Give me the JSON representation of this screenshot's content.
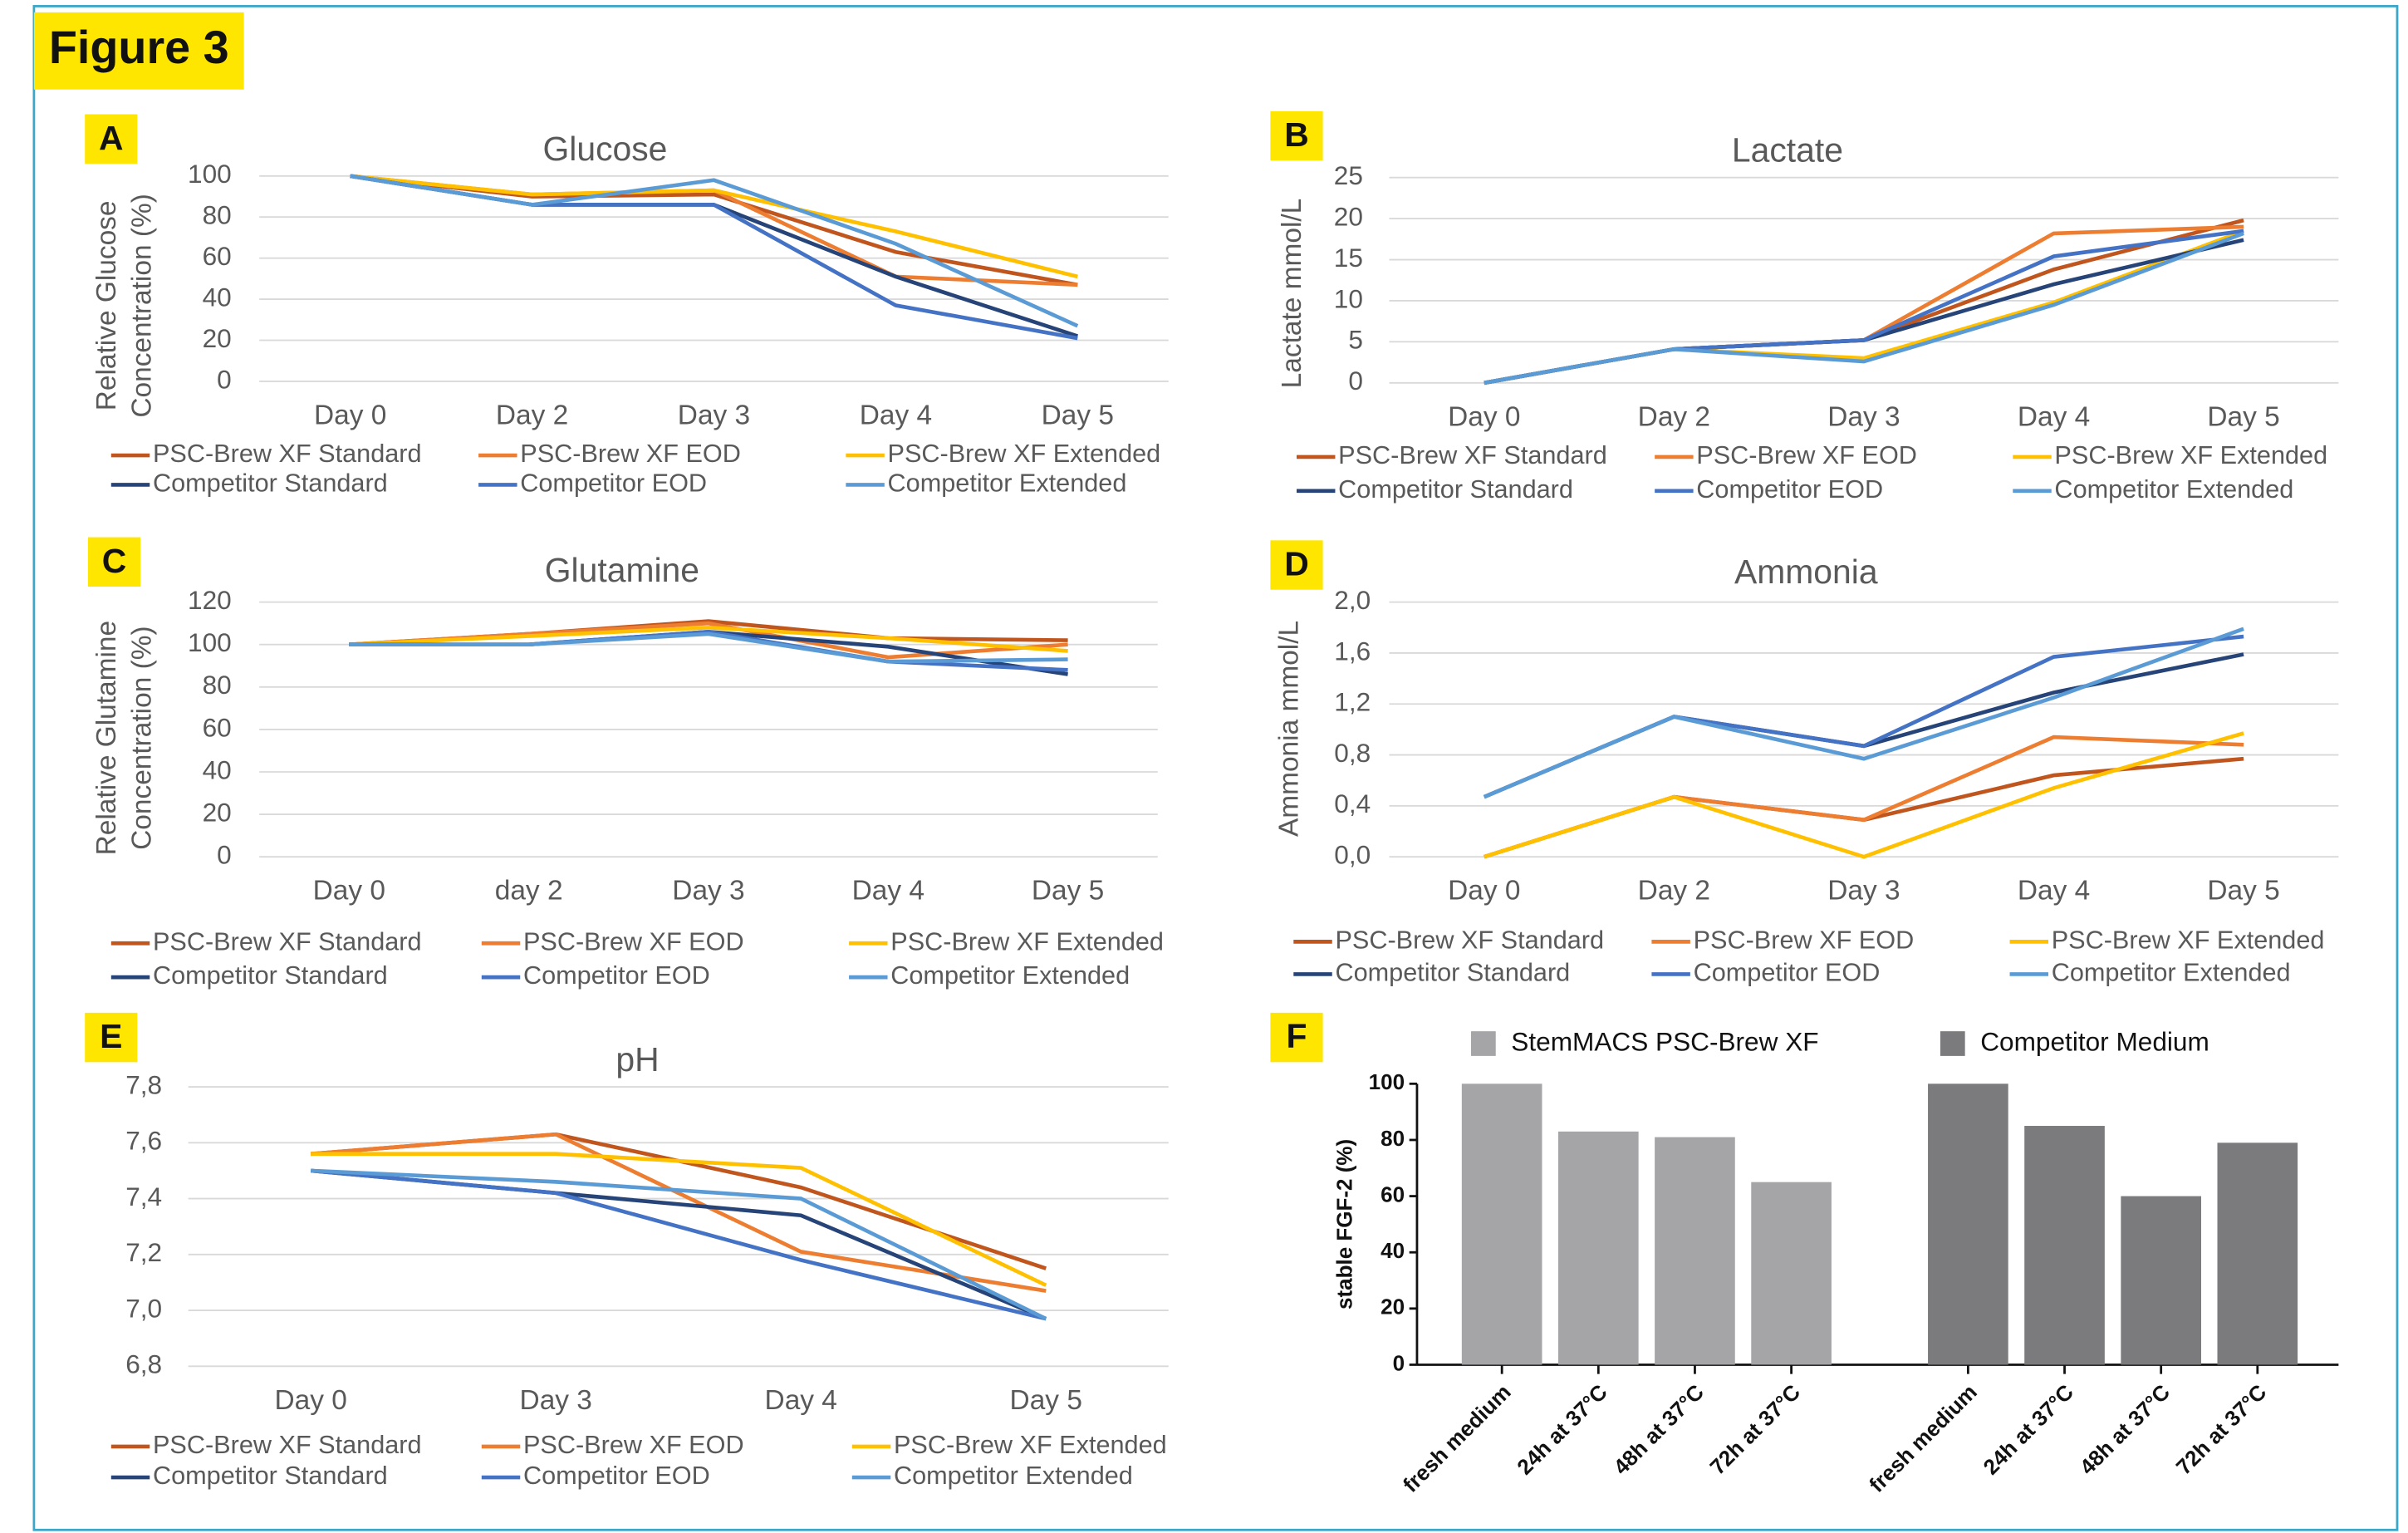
{
  "figure_label": "Figure 3",
  "chart_data": [
    {
      "type": "line",
      "panel": "A",
      "title": "Glucose",
      "ylabel": [
        "Relative Glucose",
        "Concentration (%)"
      ],
      "categories": [
        "Day 0",
        "Day 2",
        "Day 3",
        "Day 4",
        "Day 5"
      ],
      "ylim": [
        0,
        100
      ],
      "yticks": [
        0,
        20,
        40,
        60,
        80,
        100
      ],
      "grid": true,
      "series": [
        {
          "name": "PSC-Brew XF Standard",
          "color": "#c0561d",
          "values": [
            100,
            90,
            91,
            63,
            47
          ]
        },
        {
          "name": "PSC-Brew XF EOD",
          "color": "#ed7d31",
          "values": [
            100,
            91,
            93,
            51,
            47
          ]
        },
        {
          "name": "PSC-Brew XF Extended",
          "color": "#ffc000",
          "values": [
            100,
            91,
            93,
            73,
            51
          ]
        },
        {
          "name": "Competitor Standard",
          "color": "#264478",
          "values": [
            100,
            86,
            86,
            51,
            22
          ]
        },
        {
          "name": "Competitor EOD",
          "color": "#4472c4",
          "values": [
            100,
            86,
            86,
            37,
            21
          ]
        },
        {
          "name": "Competitor Extended",
          "color": "#5b9bd5",
          "values": [
            100,
            86,
            98,
            67,
            27
          ]
        }
      ]
    },
    {
      "type": "line",
      "panel": "B",
      "title": "Lactate",
      "ylabel": [
        "Lactate mmol/L"
      ],
      "categories": [
        "Day 0",
        "Day 2",
        "Day 3",
        "Day 4",
        "Day 5"
      ],
      "ylim": [
        0,
        25
      ],
      "yticks": [
        0,
        5,
        10,
        15,
        20,
        25
      ],
      "grid": true,
      "series": [
        {
          "name": "PSC-Brew XF Standard",
          "color": "#c0561d",
          "values": [
            0,
            4.1,
            5.2,
            13.8,
            19.8
          ]
        },
        {
          "name": "PSC-Brew XF EOD",
          "color": "#ed7d31",
          "values": [
            0,
            4.1,
            5.2,
            18.2,
            19.0
          ]
        },
        {
          "name": "PSC-Brew XF Extended",
          "color": "#ffc000",
          "values": [
            0,
            4.1,
            3.0,
            9.8,
            18.5
          ]
        },
        {
          "name": "Competitor Standard",
          "color": "#264478",
          "values": [
            0,
            4.1,
            5.2,
            12.0,
            17.4
          ]
        },
        {
          "name": "Competitor EOD",
          "color": "#4472c4",
          "values": [
            0,
            4.1,
            5.2,
            15.4,
            18.5
          ]
        },
        {
          "name": "Competitor Extended",
          "color": "#5b9bd5",
          "values": [
            0,
            4.1,
            2.6,
            9.5,
            18.2
          ]
        }
      ]
    },
    {
      "type": "line",
      "panel": "C",
      "title": "Glutamine",
      "ylabel": [
        "Relative Glutamine",
        "Concentration (%)"
      ],
      "categories": [
        "Day 0",
        "day 2",
        "Day 3",
        "Day 4",
        "Day 5"
      ],
      "ylim": [
        0,
        120
      ],
      "yticks": [
        0,
        20,
        40,
        60,
        80,
        100,
        120
      ],
      "grid": true,
      "series": [
        {
          "name": "PSC-Brew XF Standard",
          "color": "#c0561d",
          "values": [
            100,
            105,
            111,
            103,
            102
          ]
        },
        {
          "name": "PSC-Brew XF EOD",
          "color": "#ed7d31",
          "values": [
            100,
            105,
            110,
            94,
            100
          ]
        },
        {
          "name": "PSC-Brew XF Extended",
          "color": "#ffc000",
          "values": [
            100,
            104,
            108,
            103,
            97
          ]
        },
        {
          "name": "Competitor Standard",
          "color": "#264478",
          "values": [
            100,
            100,
            106,
            99,
            86
          ]
        },
        {
          "name": "Competitor EOD",
          "color": "#4472c4",
          "values": [
            100,
            100,
            106,
            92,
            88
          ]
        },
        {
          "name": "Competitor Extended",
          "color": "#5b9bd5",
          "values": [
            100,
            100,
            105,
            92,
            93
          ]
        }
      ]
    },
    {
      "type": "line",
      "panel": "D",
      "title": "Ammonia",
      "ylabel": [
        "Ammonia mmol/L"
      ],
      "categories": [
        "Day 0",
        "Day 2",
        "Day 3",
        "Day 4",
        "Day 5"
      ],
      "ylim": [
        0,
        2
      ],
      "yticks": [
        {
          "value": 0,
          "label": "0,0"
        },
        {
          "value": 0.4,
          "label": "0,4"
        },
        {
          "value": 0.8,
          "label": "0,8"
        },
        {
          "value": 1.2,
          "label": "1,2"
        },
        {
          "value": 1.6,
          "label": "1,6"
        },
        {
          "value": 2,
          "label": "2,0"
        }
      ],
      "grid": true,
      "series": [
        {
          "name": "PSC-Brew XF Standard",
          "color": "#c0561d",
          "values": [
            0,
            0.47,
            0.29,
            0.64,
            0.77
          ]
        },
        {
          "name": "PSC-Brew XF EOD",
          "color": "#ed7d31",
          "values": [
            0,
            0.47,
            0.29,
            0.94,
            0.88
          ]
        },
        {
          "name": "PSC-Brew XF Extended",
          "color": "#ffc000",
          "values": [
            0,
            0.47,
            0,
            0.54,
            0.97
          ]
        },
        {
          "name": "Competitor Standard",
          "color": "#264478",
          "values": [
            0.47,
            1.1,
            0.87,
            1.29,
            1.59
          ]
        },
        {
          "name": "Competitor EOD",
          "color": "#4472c4",
          "values": [
            0.47,
            1.1,
            0.87,
            1.57,
            1.73
          ]
        },
        {
          "name": "Competitor Extended",
          "color": "#5b9bd5",
          "values": [
            0.47,
            1.1,
            0.77,
            1.25,
            1.79
          ]
        }
      ]
    },
    {
      "type": "line",
      "panel": "E",
      "title": "pH",
      "categories": [
        "Day 0",
        "Day 3",
        "Day 4",
        "Day 5"
      ],
      "ylim": [
        6.8,
        7.8
      ],
      "yticks": [
        {
          "value": 6.8,
          "label": "6,8"
        },
        {
          "value": 7,
          "label": "7,0"
        },
        {
          "value": 7.2,
          "label": "7,2"
        },
        {
          "value": 7.4,
          "label": "7,4"
        },
        {
          "value": 7.6,
          "label": "7,6"
        },
        {
          "value": 7.8,
          "label": "7,8"
        }
      ],
      "grid": true,
      "series": [
        {
          "name": "PSC-Brew XF Standard",
          "color": "#c0561d",
          "values": [
            7.56,
            7.63,
            7.44,
            7.15
          ]
        },
        {
          "name": "PSC-Brew XF EOD",
          "color": "#ed7d31",
          "values": [
            7.56,
            7.63,
            7.21,
            7.07
          ]
        },
        {
          "name": "PSC-Brew XF Extended",
          "color": "#ffc000",
          "values": [
            7.56,
            7.56,
            7.51,
            7.09
          ]
        },
        {
          "name": "Competitor Standard",
          "color": "#264478",
          "values": [
            7.5,
            7.42,
            7.34,
            6.97
          ]
        },
        {
          "name": "Competitor EOD",
          "color": "#4472c4",
          "values": [
            7.5,
            7.42,
            7.18,
            6.97
          ]
        },
        {
          "name": "Competitor Extended",
          "color": "#5b9bd5",
          "values": [
            7.5,
            7.46,
            7.4,
            6.97
          ]
        }
      ]
    },
    {
      "type": "bar",
      "panel": "F",
      "ylabel": [
        "stable FGF-2 (%)"
      ],
      "categories": [
        "fresh medium",
        "24h at 37°C",
        "48h at 37°C",
        "72h at 37°C",
        "fresh medium",
        "24h at 37°C",
        "48h at 37°C",
        "72h at 37°C"
      ],
      "ylim": [
        0,
        100
      ],
      "yticks": [
        0,
        20,
        40,
        60,
        80,
        100
      ],
      "grid": false,
      "series": [
        {
          "name": "StemMACS PSC-Brew XF",
          "color": "#a5a5a8",
          "values": [
            100,
            83,
            81,
            65,
            null,
            null,
            null,
            null
          ]
        },
        {
          "name": "Competitor Medium",
          "color": "#7b7b7e",
          "values": [
            null,
            null,
            null,
            null,
            100,
            85,
            60,
            79
          ]
        }
      ]
    }
  ]
}
